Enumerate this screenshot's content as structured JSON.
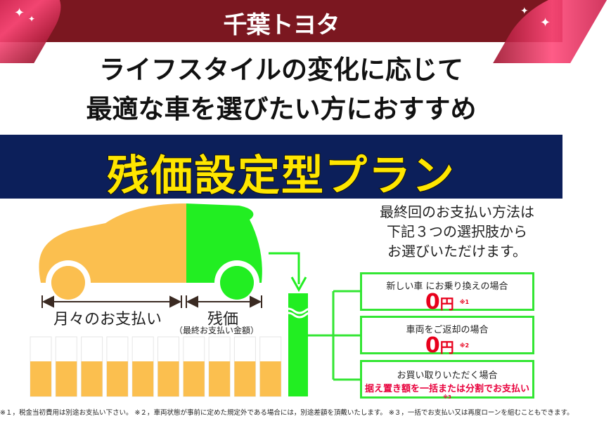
{
  "header": {
    "logo": "千葉トヨタ",
    "color": "#7b1720"
  },
  "lead": {
    "line1": "ライフスタイルの変化に応じて",
    "line2": "最適な車を選びたい方におすすめ"
  },
  "banner": {
    "title": "残価設定型プラン",
    "bg": "#0c1f5a",
    "text_color": "#ffe600"
  },
  "diagram": {
    "monthly_label": "月々のお支払い",
    "residual_label": "残価",
    "residual_sub": "（最終お支払い金額）",
    "monthly_color": "#fbbf4f",
    "residual_color": "#22ee22"
  },
  "options": {
    "intro": [
      "最終回のお支払い方法は",
      "下記３つの選択肢から",
      "お選びいただけます。"
    ],
    "items": [
      {
        "label": "新しい車  にお乗り換えの場合",
        "amount": "0",
        "unit": "円",
        "note": "※1"
      },
      {
        "label": "車両をご返却の場合",
        "amount": "0",
        "unit": "円",
        "note": "※2"
      },
      {
        "label": "お買い取りいただく場合",
        "detail": "据え置き額を一括または分割でお支払い",
        "note": "※3"
      }
    ]
  },
  "footer": "※１，税金当初費用は別途お支払い下さい。 ※２，車両状態が事前に定めた規定外である場合には，別途差額を頂戴いたします。 ※３，一括でお支払い又は再度ローンを組むこともできます。"
}
